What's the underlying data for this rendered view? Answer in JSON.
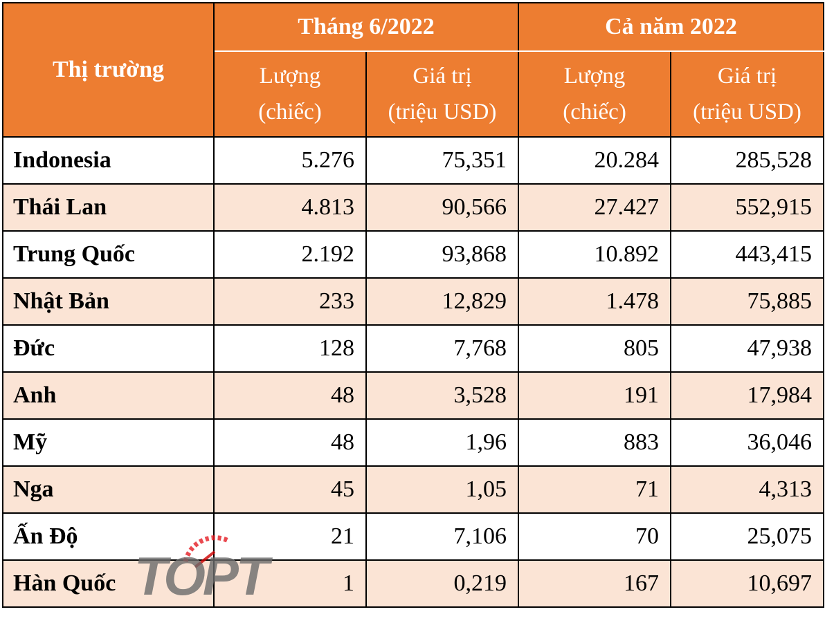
{
  "table": {
    "header": {
      "market": "Thị trường",
      "group_june": "Tháng 6/2022",
      "group_year": "Cả năm 2022",
      "qty_line1": "Lượng",
      "qty_line2": "(chiếc)",
      "val_line1": "Giá trị",
      "val_line2": "(triệu USD)"
    },
    "rows": [
      {
        "market": "Indonesia",
        "june_qty": "5.276",
        "june_val": "75,351",
        "year_qty": "20.284",
        "year_val": "285,528"
      },
      {
        "market": "Thái Lan",
        "june_qty": "4.813",
        "june_val": "90,566",
        "year_qty": "27.427",
        "year_val": "552,915"
      },
      {
        "market": "Trung Quốc",
        "june_qty": "2.192",
        "june_val": "93,868",
        "year_qty": "10.892",
        "year_val": "443,415"
      },
      {
        "market": "Nhật Bản",
        "june_qty": "233",
        "june_val": "12,829",
        "year_qty": "1.478",
        "year_val": "75,885"
      },
      {
        "market": "Đức",
        "june_qty": "128",
        "june_val": "7,768",
        "year_qty": "805",
        "year_val": "47,938"
      },
      {
        "market": "Anh",
        "june_qty": "48",
        "june_val": "3,528",
        "year_qty": "191",
        "year_val": "17,984"
      },
      {
        "market": "Mỹ",
        "june_qty": "48",
        "june_val": "1,96",
        "year_qty": "883",
        "year_val": "36,046"
      },
      {
        "market": "Nga",
        "june_qty": "45",
        "june_val": "1,05",
        "year_qty": "71",
        "year_val": "4,313"
      },
      {
        "market": "Ấn Độ",
        "june_qty": "21",
        "june_val": "7,106",
        "year_qty": "70",
        "year_val": "25,075"
      },
      {
        "market": "Hàn Quốc",
        "june_qty": "1",
        "june_val": "0,219",
        "year_qty": "167",
        "year_val": "10,697"
      }
    ]
  },
  "watermark": {
    "text": "TOPT",
    "icon": "gauge-logo-icon"
  },
  "colors": {
    "header_bg": "#ED7D31",
    "alt_row_bg": "#FBE4D5",
    "header_text": "#ffffff"
  }
}
